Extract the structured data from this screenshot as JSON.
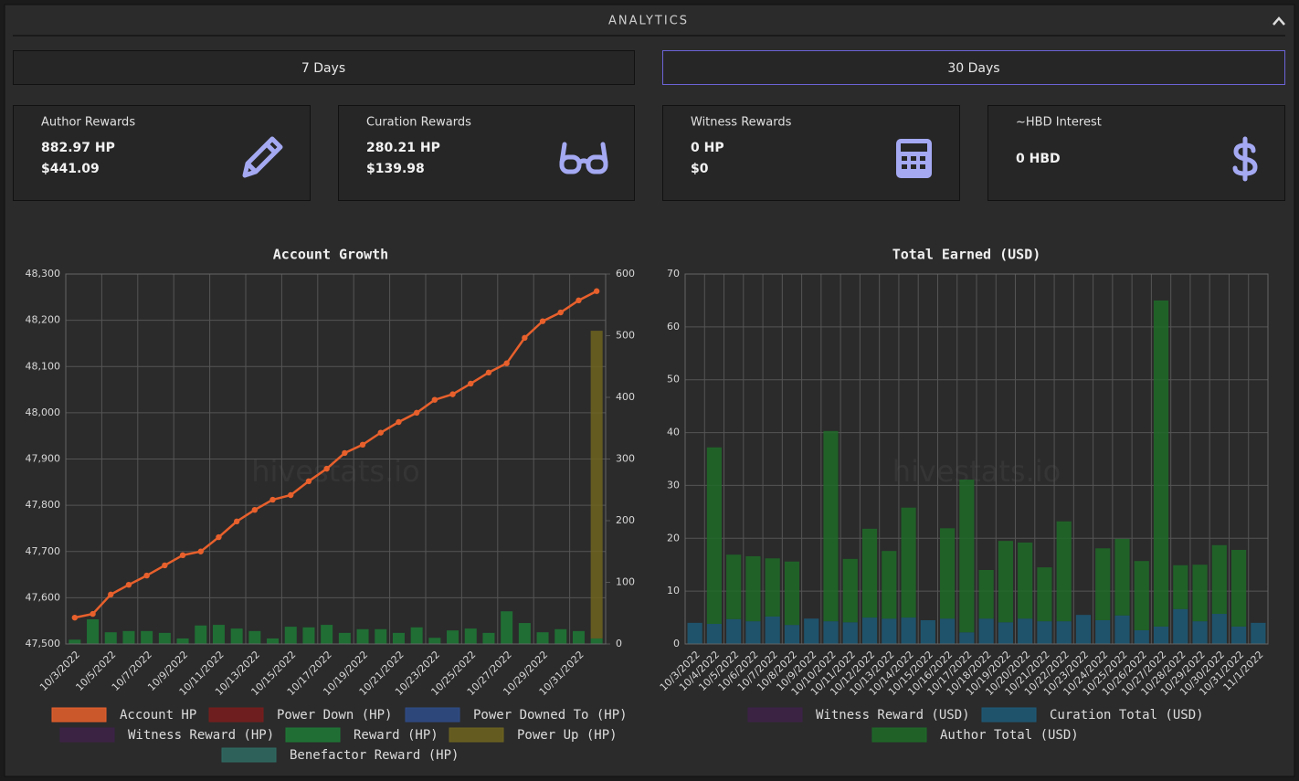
{
  "header": {
    "title": "ANALYTICS"
  },
  "tabs": [
    "7 Days",
    "30 Days"
  ],
  "cards": [
    {
      "title": "Author Rewards",
      "lines": [
        "882.97 HP",
        "$441.09"
      ]
    },
    {
      "title": "Curation Rewards",
      "lines": [
        "280.21 HP",
        "$139.98"
      ]
    },
    {
      "title": "Witness Rewards",
      "lines": [
        "0 HP",
        "$0"
      ]
    },
    {
      "title": "~HBD Interest",
      "lines": [
        "0 HBD"
      ]
    }
  ],
  "chart_data": [
    {
      "type": "combo",
      "title": "Account Growth",
      "watermark": "hivestats.io",
      "categories": [
        "10/3/2022",
        null,
        "10/5/2022",
        null,
        "10/7/2022",
        null,
        "10/9/2022",
        null,
        "10/11/2022",
        null,
        "10/13/2022",
        null,
        "10/15/2022",
        null,
        "10/17/2022",
        null,
        "10/19/2022",
        null,
        "10/21/2022",
        null,
        "10/23/2022",
        null,
        "10/25/2022",
        null,
        "10/27/2022",
        null,
        "10/29/2022",
        null,
        "10/31/2022",
        null
      ],
      "series": [
        {
          "name": "Account HP",
          "type": "line",
          "axis": "y",
          "color": "#e8602c",
          "values": [
            47557,
            47565,
            47607,
            47628,
            47648,
            47670,
            47692,
            47700,
            47731,
            47765,
            47790,
            47812,
            47822,
            47852,
            47879,
            47913,
            47931,
            47957,
            47980,
            48000,
            48028,
            48040,
            48063,
            48087,
            48107,
            48162,
            48198,
            48217,
            48243,
            48263
          ]
        },
        {
          "name": "Power Down (HP)",
          "type": "bar",
          "axis": "y2",
          "color": "#7a1c1c",
          "values": [
            0,
            0,
            0,
            0,
            0,
            0,
            0,
            0,
            0,
            0,
            0,
            0,
            0,
            0,
            0,
            0,
            0,
            0,
            0,
            0,
            0,
            0,
            0,
            0,
            0,
            0,
            0,
            0,
            0,
            0
          ]
        },
        {
          "name": "Power Downed To (HP)",
          "type": "bar",
          "axis": "y2",
          "color": "#2f4c8a",
          "values": [
            0,
            0,
            0,
            0,
            0,
            0,
            0,
            0,
            0,
            0,
            0,
            0,
            0,
            0,
            0,
            0,
            0,
            0,
            0,
            0,
            0,
            0,
            0,
            0,
            0,
            0,
            0,
            0,
            0,
            0
          ]
        },
        {
          "name": "Witness Reward (HP)",
          "type": "bar",
          "axis": "y2",
          "color": "#3e2248",
          "values": [
            0,
            0,
            0,
            0,
            0,
            0,
            0,
            0,
            0,
            0,
            0,
            0,
            0,
            0,
            0,
            0,
            0,
            0,
            0,
            0,
            0,
            0,
            0,
            0,
            0,
            0,
            0,
            0,
            0,
            0
          ]
        },
        {
          "name": "Reward (HP)",
          "type": "bar",
          "axis": "y2",
          "color": "#1e7a36",
          "values": [
            7,
            40,
            19,
            21,
            21,
            18,
            9,
            30,
            31,
            25,
            21,
            9,
            28,
            27,
            31,
            18,
            24,
            24,
            18,
            27,
            10,
            22,
            25,
            18,
            53,
            34,
            19,
            24,
            21,
            9
          ]
        },
        {
          "name": "Power Up (HP)",
          "type": "bar",
          "axis": "y2",
          "color": "#6e6420",
          "values": [
            0,
            0,
            0,
            0,
            0,
            0,
            0,
            0,
            0,
            0,
            0,
            0,
            0,
            0,
            0,
            0,
            0,
            0,
            0,
            0,
            0,
            0,
            0,
            0,
            0,
            0,
            0,
            0,
            0,
            499
          ]
        },
        {
          "name": "Benefactor Reward (HP)",
          "type": "bar",
          "axis": "y2",
          "color": "#2f6b63",
          "values": [
            0,
            0,
            0,
            0,
            0,
            0,
            0,
            0,
            0,
            0,
            0,
            0,
            0,
            0,
            0,
            0,
            0,
            0,
            0,
            0,
            0,
            0,
            0,
            0,
            0,
            0,
            0,
            0,
            0,
            0
          ]
        }
      ],
      "ylim": [
        47500,
        48300
      ],
      "yticks": [
        {
          "value": 47500,
          "label": "47,500"
        },
        {
          "value": 47600,
          "label": "47,600"
        },
        {
          "value": 47700,
          "label": "47,700"
        },
        {
          "value": 47800,
          "label": "47,800"
        },
        {
          "value": 47900,
          "label": "47,900"
        },
        {
          "value": 48000,
          "label": "48,000"
        },
        {
          "value": 48100,
          "label": "48,100"
        },
        {
          "value": 48200,
          "label": "48,200"
        },
        {
          "value": 48300,
          "label": "48,300"
        }
      ],
      "y2lim": [
        0,
        600
      ],
      "y2ticks": [
        0,
        100,
        200,
        300,
        400,
        500,
        600
      ],
      "grid": true,
      "legend": "bottom"
    },
    {
      "type": "stacked_bar",
      "title": "Total Earned (USD)",
      "watermark": "hivestats.io",
      "categories": [
        "10/3/2022",
        "10/4/2022",
        "10/5/2022",
        "10/6/2022",
        "10/7/2022",
        "10/8/2022",
        "10/9/2022",
        "10/10/2022",
        "10/11/2022",
        "10/12/2022",
        "10/13/2022",
        "10/14/2022",
        "10/15/2022",
        "10/16/2022",
        "10/17/2022",
        "10/18/2022",
        "10/19/2022",
        "10/20/2022",
        "10/21/2022",
        "10/22/2022",
        "10/23/2022",
        "10/24/2022",
        "10/25/2022",
        "10/26/2022",
        "10/27/2022",
        "10/28/2022",
        "10/29/2022",
        "10/30/2022",
        "10/31/2022",
        "11/1/2022"
      ],
      "series": [
        {
          "name": "Witness Reward (USD)",
          "color": "#3e2248",
          "values": [
            0,
            0,
            0,
            0,
            0,
            0,
            0,
            0,
            0,
            0,
            0,
            0,
            0,
            0,
            0,
            0,
            0,
            0,
            0,
            0,
            0,
            0,
            0,
            0,
            0,
            0,
            0,
            0,
            0,
            0
          ]
        },
        {
          "name": "Curation Total (USD)",
          "color": "#1d5a78",
          "values": [
            4.0,
            3.8,
            4.7,
            4.3,
            5.2,
            3.6,
            4.8,
            4.3,
            4.1,
            5.0,
            4.8,
            5.0,
            4.5,
            4.8,
            2.2,
            4.8,
            4.1,
            4.8,
            4.3,
            4.3,
            5.5,
            4.5,
            5.4,
            2.6,
            3.3,
            6.6,
            4.3,
            5.7,
            3.3,
            4.0
          ]
        },
        {
          "name": "Author Total (USD)",
          "color": "#1e6b28",
          "values": [
            0,
            33.4,
            12.2,
            12.3,
            11.0,
            12.0,
            0,
            36.0,
            12.0,
            16.8,
            12.8,
            20.8,
            0,
            17.1,
            28.9,
            9.2,
            15.4,
            14.4,
            10.2,
            18.9,
            0,
            13.6,
            14.5,
            13.1,
            61.7,
            8.3,
            10.7,
            13.0,
            14.5,
            0
          ]
        }
      ],
      "ylim": [
        0,
        70
      ],
      "yticks": [
        0,
        10,
        20,
        30,
        40,
        50,
        60,
        70
      ],
      "grid": true,
      "legend": "bottom"
    }
  ]
}
